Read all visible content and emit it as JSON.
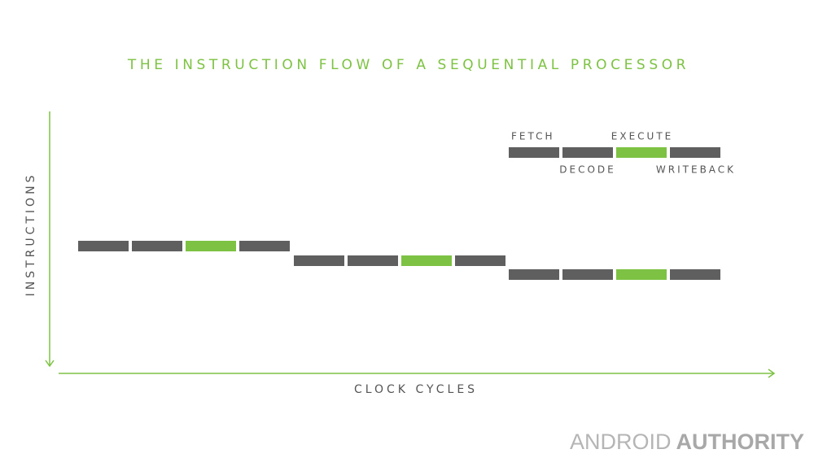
{
  "title": "THE INSTRUCTION FLOW OF A SEQUENTIAL PROCESSOR",
  "axes": {
    "y_label": "INSTRUCTIONS",
    "x_label": "CLOCK CYCLES"
  },
  "legend": {
    "fetch": "FETCH",
    "decode": "DECODE",
    "execute": "EXECUTE",
    "writeback": "WRITEBACK"
  },
  "watermark": {
    "light": "ANDROID",
    "bold": "AUTHORITY"
  }
}
